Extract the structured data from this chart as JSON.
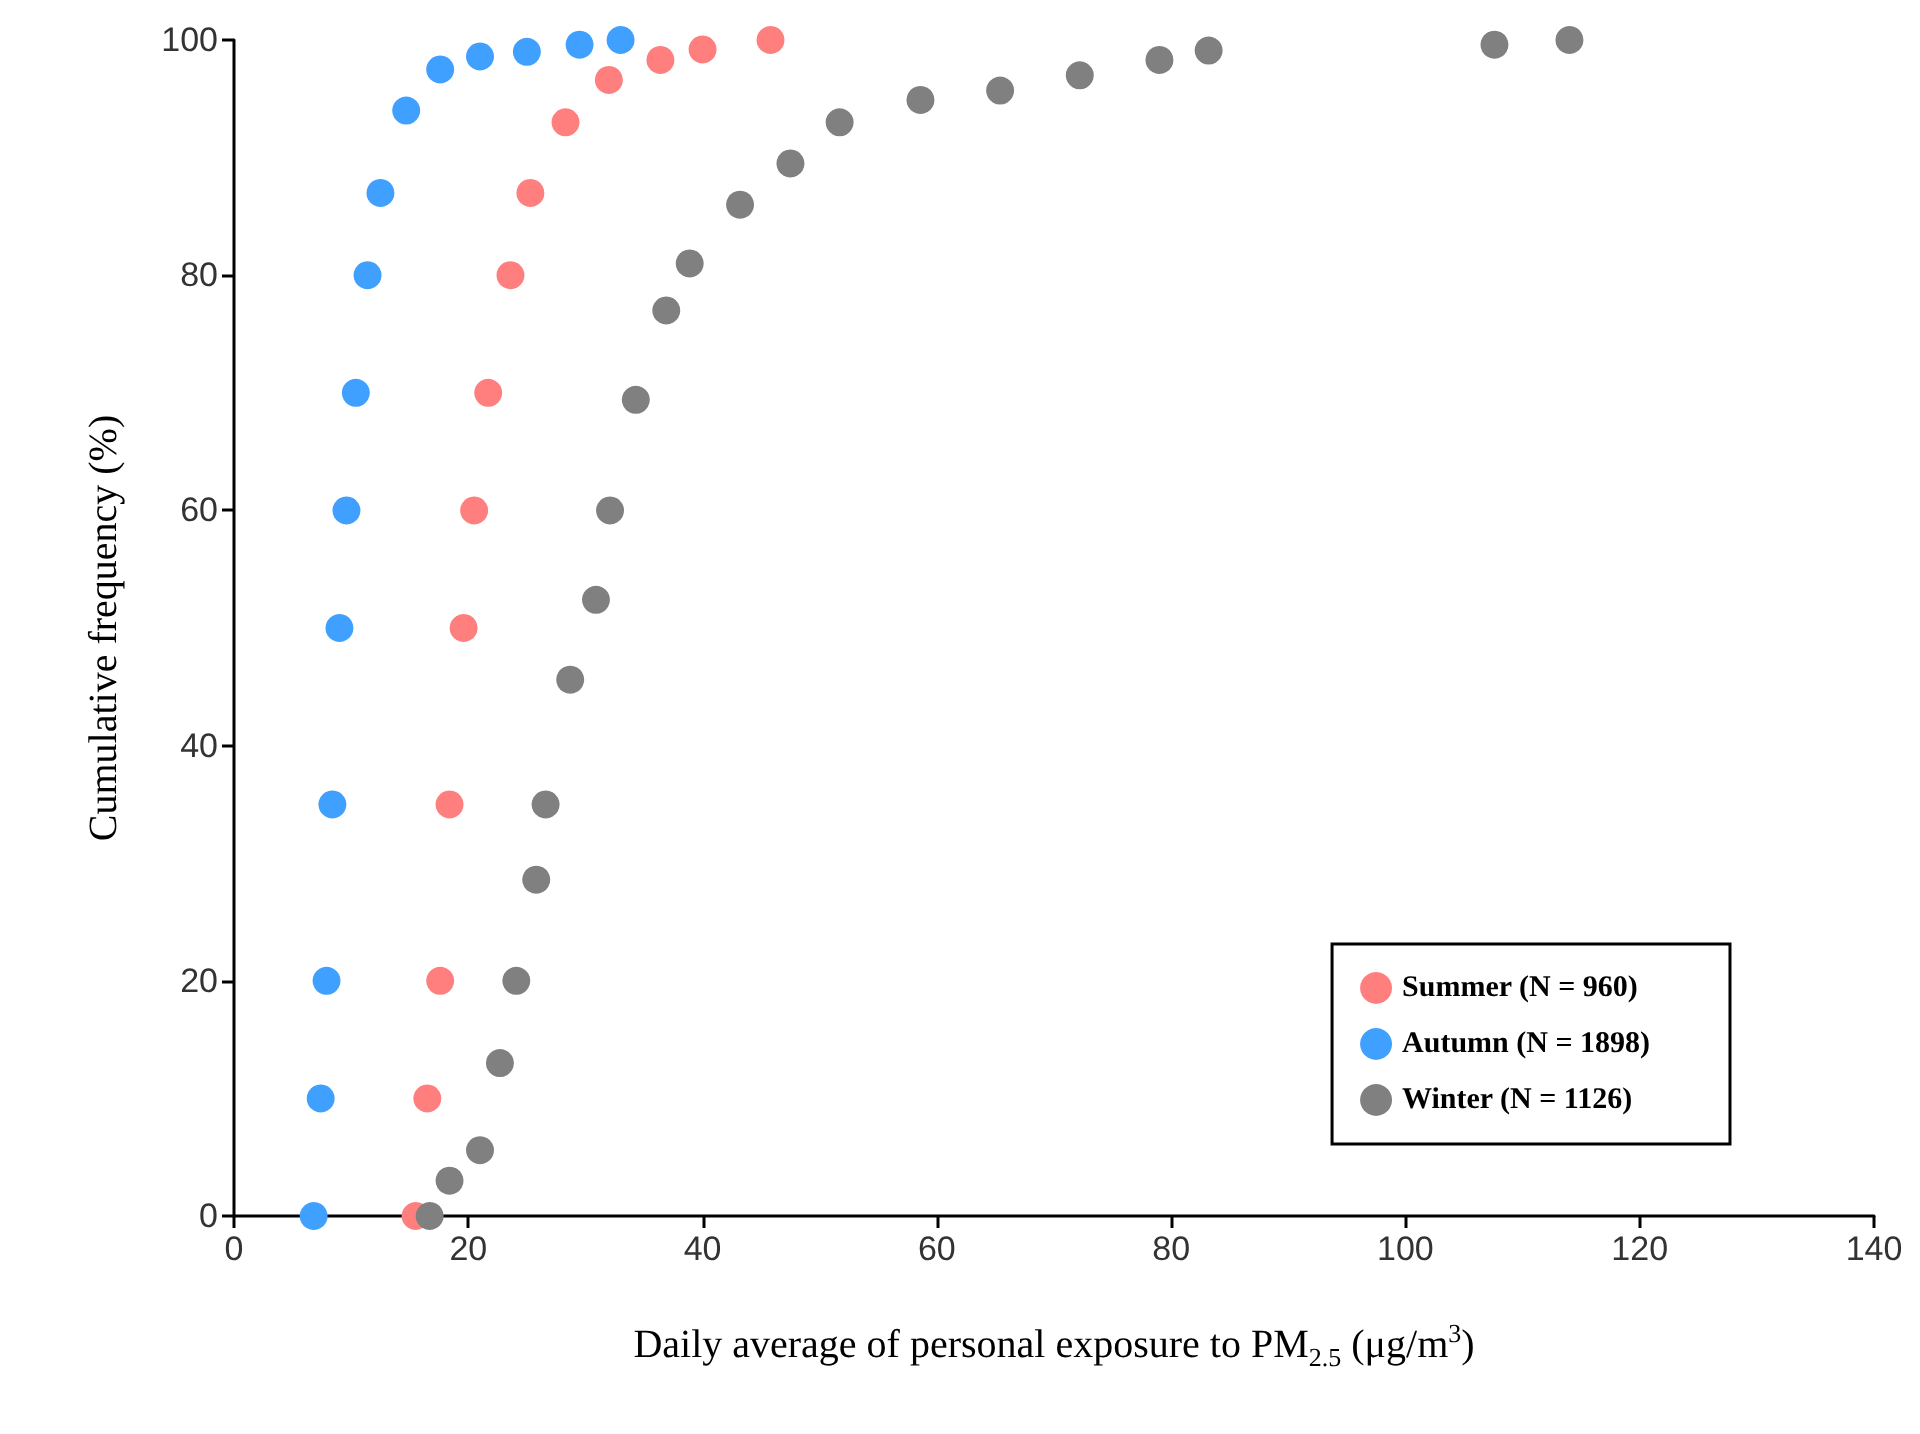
{
  "chart_data": {
    "type": "scatter",
    "xlabel": "Daily average of personal exposure to PM$_{2.5}$ (μg/m$^{3}$)",
    "ylabel": "Cumulative frequency (%)",
    "xlim": [
      0,
      140
    ],
    "xticks": [
      0,
      20,
      40,
      60,
      80,
      100,
      120,
      140
    ],
    "ylim": [
      0,
      100
    ],
    "yticks": [
      0,
      20,
      40,
      60,
      80,
      100
    ],
    "grid": false,
    "legend": "bottom right",
    "marker": "circle",
    "series": [
      {
        "name": "Summer (N = 960)",
        "color": "#ff7f7f",
        "x": [
          15.5,
          16.5,
          17.6,
          18.4,
          19.6,
          20.5,
          21.7,
          23.6,
          25.3,
          28.3,
          32,
          36.4,
          40,
          45.8
        ],
        "values": [
          0,
          10,
          20,
          35,
          50,
          60,
          70,
          80,
          87,
          93,
          96.6,
          98.3,
          99.2,
          100
        ]
      },
      {
        "name": "Autumn (N = 1898)",
        "color": "#3fa0ff",
        "x": [
          6.8,
          7.4,
          7.9,
          8.4,
          9,
          9.6,
          10.4,
          11.4,
          12.5,
          14.7,
          17.6,
          21,
          25,
          29.5,
          33
        ],
        "values": [
          0,
          10,
          20,
          35,
          50,
          60,
          70,
          80,
          87,
          94,
          97.5,
          98.6,
          99,
          99.6,
          100
        ]
      },
      {
        "name": "Winter (N = 1126)",
        "color": "#808080",
        "x": [
          16.7,
          18.4,
          21,
          22.7,
          24.1,
          25.8,
          26.6,
          28.7,
          30.9,
          32.1,
          34.3,
          36.9,
          38.9,
          43.2,
          47.5,
          51.7,
          58.6,
          65.4,
          72.2,
          79,
          83.2,
          107.6,
          114
        ],
        "values": [
          0,
          3,
          5.6,
          13,
          20,
          28.6,
          35,
          45.6,
          52.4,
          60,
          69.4,
          77,
          81,
          86,
          89.5,
          93,
          94.9,
          95.7,
          97,
          98.3,
          99.1,
          99.6,
          100
        ]
      }
    ]
  }
}
